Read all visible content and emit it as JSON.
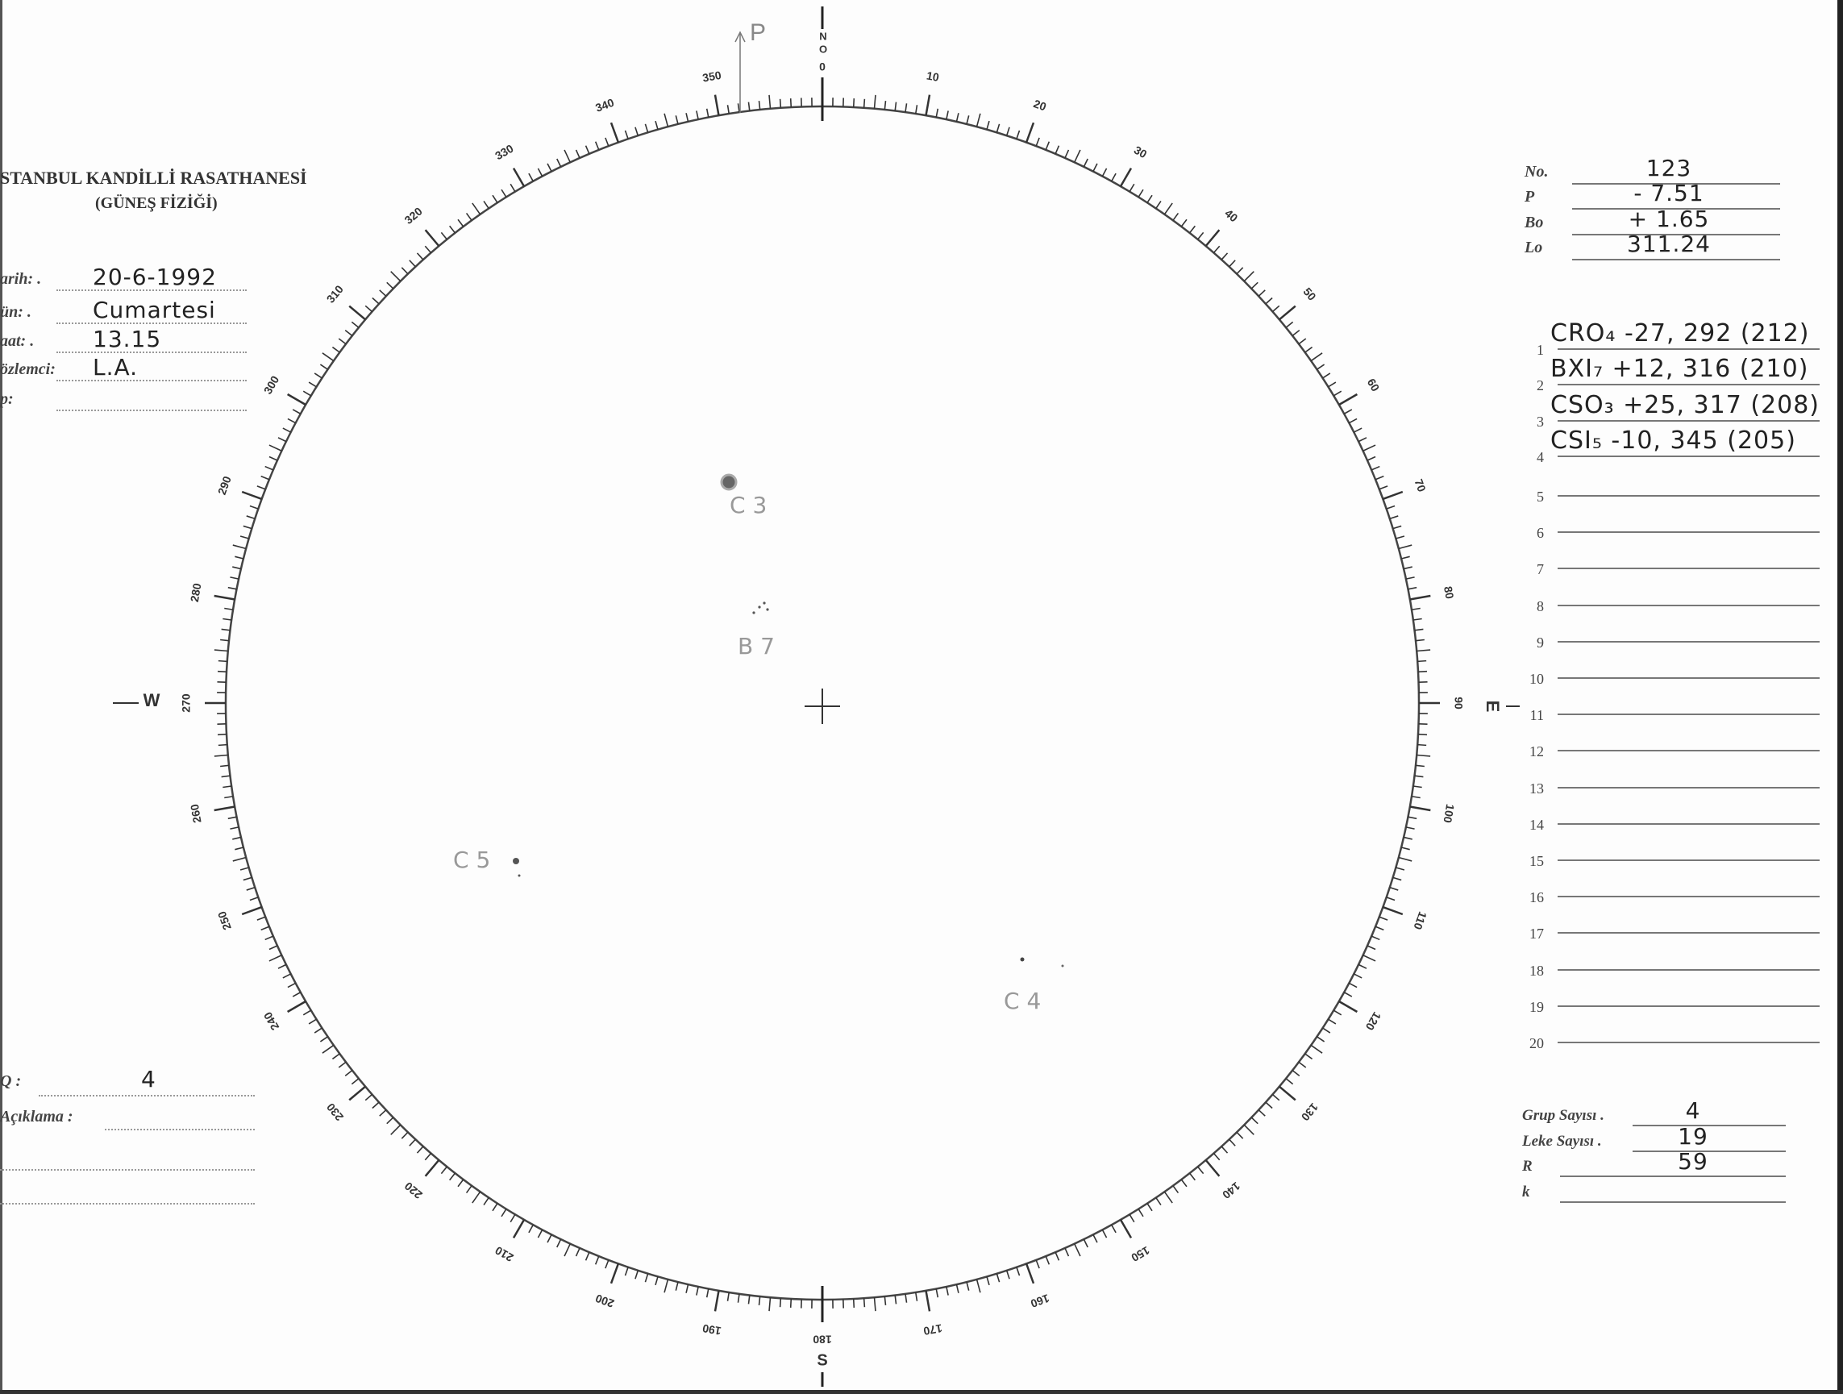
{
  "header": {
    "title": "STANBUL  KANDİLLİ  RASATHANESİ",
    "subtitle": "(GÜNEŞ FİZİĞİ)"
  },
  "left_fields": [
    {
      "label": "arih: .",
      "value": "20-6-1992"
    },
    {
      "label": "ün: .",
      "value": "Cumartesi"
    },
    {
      "label": "aat: .",
      "value": "13.15"
    },
    {
      "label": "özlemci:",
      "value": "L.A."
    },
    {
      "label": "p:",
      "value": ""
    }
  ],
  "bottom_left": {
    "q_label": "Q :",
    "q_value": "4",
    "aciklama_label": "Açıklama :",
    "aciklama_value": ""
  },
  "params": [
    {
      "label": "No.",
      "value": "123"
    },
    {
      "label": "P",
      "value": "- 7.51"
    },
    {
      "label": "Bo",
      "value": "+ 1.65"
    },
    {
      "label": "Lo",
      "value": "311.24"
    }
  ],
  "groups": [
    {
      "n": "1",
      "value": "CRO₄ -27, 292 (212)"
    },
    {
      "n": "2",
      "value": "BXI₇ +12, 316 (210)"
    },
    {
      "n": "3",
      "value": "CSO₃ +25, 317 (208)"
    },
    {
      "n": "4",
      "value": "CSI₅ -10, 345 (205)"
    },
    {
      "n": "5",
      "value": ""
    },
    {
      "n": "6",
      "value": ""
    },
    {
      "n": "7",
      "value": ""
    },
    {
      "n": "8",
      "value": ""
    },
    {
      "n": "9",
      "value": ""
    },
    {
      "n": "10",
      "value": ""
    },
    {
      "n": "11",
      "value": ""
    },
    {
      "n": "12",
      "value": ""
    },
    {
      "n": "13",
      "value": ""
    },
    {
      "n": "14",
      "value": ""
    },
    {
      "n": "15",
      "value": ""
    },
    {
      "n": "16",
      "value": ""
    },
    {
      "n": "17",
      "value": ""
    },
    {
      "n": "18",
      "value": ""
    },
    {
      "n": "19",
      "value": ""
    },
    {
      "n": "20",
      "value": ""
    }
  ],
  "totals": [
    {
      "label": "Grup Sayısı .",
      "value": "4"
    },
    {
      "label": "Leke Sayısı .",
      "value": "19"
    },
    {
      "label": "R",
      "value": "59"
    },
    {
      "label": "k",
      "value": ""
    }
  ],
  "disk": {
    "degree_labels": [
      "0",
      "10",
      "20",
      "30",
      "40",
      "50",
      "60",
      "70",
      "80",
      "90",
      "100",
      "110",
      "120",
      "130",
      "140",
      "150",
      "160",
      "170",
      "180",
      "190",
      "200",
      "210",
      "220",
      "230",
      "240",
      "250",
      "260",
      "270",
      "280",
      "290",
      "300",
      "310",
      "320",
      "330",
      "340",
      "350"
    ],
    "north": "N",
    "north2": "O",
    "south": "S",
    "east": "E",
    "west": "W",
    "p_axis_label": "P",
    "spot_labels": {
      "c3": "C 3",
      "b7": "B 7",
      "c5": "C 5",
      "c4": "C 4"
    }
  }
}
